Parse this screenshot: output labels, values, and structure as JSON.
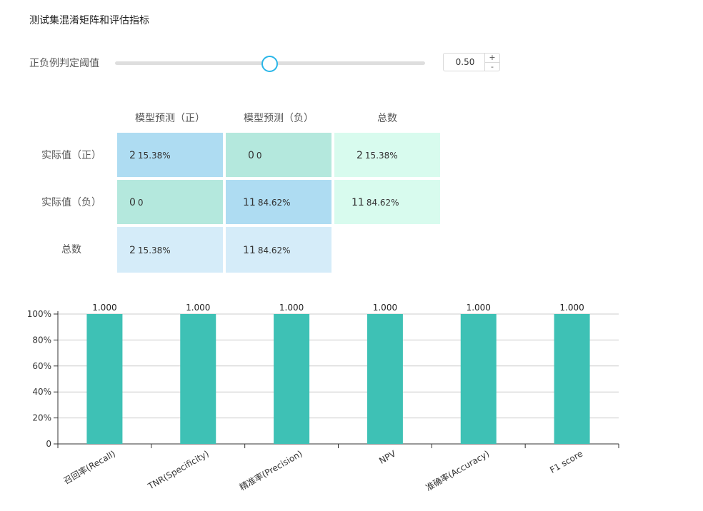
{
  "title": "测试集混淆矩阵和评估指标",
  "threshold": {
    "label": "正负例判定阈值",
    "value": "0.50",
    "slider_fraction": 0.5,
    "increment_label": "+",
    "decrement_label": "-",
    "accent_color": "#29b6e8"
  },
  "matrix": {
    "col_headers": [
      "模型预测（正）",
      "模型预测（负）",
      "总数"
    ],
    "row_headers": [
      "实际值（正）",
      "实际值（负）",
      "总数"
    ],
    "rows": [
      [
        {
          "num": "2",
          "pct": "15.38%"
        },
        {
          "num": "0",
          "pct": "0"
        },
        {
          "num": "2",
          "pct": "15.38%"
        }
      ],
      [
        {
          "num": "0",
          "pct": "0"
        },
        {
          "num": "11",
          "pct": "84.62%"
        },
        {
          "num": "11",
          "pct": "84.62%"
        }
      ],
      [
        {
          "num": "2",
          "pct": "15.38%"
        },
        {
          "num": "11",
          "pct": "84.62%"
        }
      ]
    ],
    "colors": {
      "tp_tn": "#aedcf2",
      "fp_fn": "#b4e8dd",
      "totals": "#d8fbee",
      "bottom_totals": "#d5ecf9"
    }
  },
  "chart_data": {
    "type": "bar",
    "categories": [
      "召回率(Recall)",
      "TNR(Specificity)",
      "精准率(Precision)",
      "NPV",
      "准确率(Accuracy)",
      "F1 score"
    ],
    "values": [
      1.0,
      1.0,
      1.0,
      1.0,
      1.0,
      1.0
    ],
    "data_labels": [
      "1.000",
      "1.000",
      "1.000",
      "1.000",
      "1.000",
      "1.000"
    ],
    "ylim": [
      0,
      1
    ],
    "yticks": [
      "0",
      "20%",
      "40%",
      "60%",
      "80%",
      "100%"
    ],
    "grid": true,
    "bar_color": "#3ec1b5",
    "title": "",
    "xlabel": "",
    "ylabel": ""
  }
}
